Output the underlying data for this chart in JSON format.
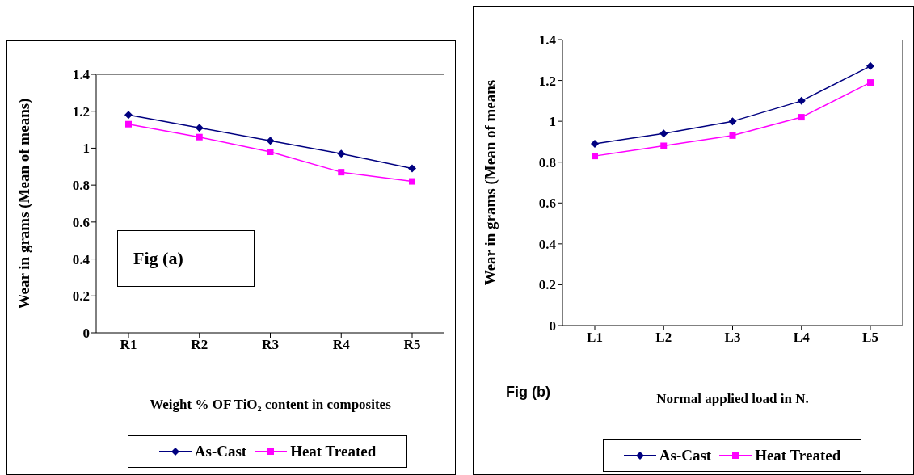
{
  "chart_data": [
    {
      "type": "line",
      "ylabel": "Wear in grams (Mean of means)",
      "xlabel": "Weight  % OF TiO₂ content in composites",
      "categories": [
        "R1",
        "R2",
        "R3",
        "R4",
        "R5"
      ],
      "series": [
        {
          "name": "As-Cast",
          "color": "#000080",
          "marker": "diamond",
          "values": [
            1.18,
            1.11,
            1.04,
            0.97,
            0.89
          ]
        },
        {
          "name": "Heat Treated",
          "color": "#ff00ff",
          "marker": "square",
          "values": [
            1.13,
            1.06,
            0.98,
            0.87,
            0.82
          ]
        }
      ],
      "ylim": [
        0,
        1.4
      ],
      "yticks": [
        0,
        0.2,
        0.4,
        0.6,
        0.8,
        1,
        1.2,
        1.4
      ],
      "grid": false,
      "legend": "bottom",
      "line_style": "solid",
      "annotations": [
        "Fig (a)"
      ]
    },
    {
      "type": "line",
      "ylabel": "Wear in grams (Mean of means",
      "xlabel": "Normal applied load in N.",
      "categories": [
        "L1",
        "L2",
        "L3",
        "L4",
        "L5"
      ],
      "series": [
        {
          "name": "As-Cast",
          "color": "#000080",
          "marker": "diamond",
          "values": [
            0.89,
            0.94,
            1.0,
            1.1,
            1.27
          ]
        },
        {
          "name": "Heat Treated",
          "color": "#ff00ff",
          "marker": "square",
          "values": [
            0.83,
            0.88,
            0.93,
            1.02,
            1.19
          ]
        }
      ],
      "ylim": [
        0,
        1.4
      ],
      "yticks": [
        0,
        0.2,
        0.4,
        0.6,
        0.8,
        1,
        1.2,
        1.4
      ],
      "grid": false,
      "legend": "bottom",
      "line_style": "solid",
      "annotations": [
        "Fig (b)"
      ]
    }
  ]
}
